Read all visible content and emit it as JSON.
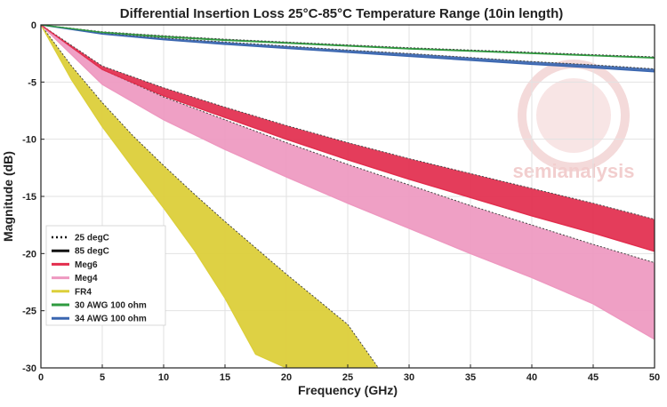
{
  "chart_data": {
    "type": "area",
    "title": "Differential Insertion Loss 25°C-85°C Temperature Range (10in length)",
    "xlabel": "Frequency (GHz)",
    "ylabel": "Magnitude (dB)",
    "xlim": [
      0,
      50
    ],
    "ylim": [
      -30,
      0
    ],
    "xticks": [
      0,
      5,
      10,
      15,
      20,
      25,
      30,
      35,
      40,
      45,
      50
    ],
    "yticks": [
      0,
      -5,
      -10,
      -15,
      -20,
      -25,
      -30
    ],
    "grid": true,
    "legend_position": "bottom-left",
    "legend": [
      {
        "label": "25 degC",
        "color": "#111111",
        "style": "dotted"
      },
      {
        "label": "85 degC",
        "color": "#111111",
        "style": "solid"
      },
      {
        "label": "Meg6",
        "color": "#e22d4d",
        "style": "solid"
      },
      {
        "label": "Meg4",
        "color": "#ee98c0",
        "style": "solid"
      },
      {
        "label": "FR4",
        "color": "#dccf3a",
        "style": "solid"
      },
      {
        "label": "30 AWG 100 ohm",
        "color": "#2f9b3f",
        "style": "solid"
      },
      {
        "label": "34 AWG 100 ohm",
        "color": "#3a66b0",
        "style": "solid"
      }
    ],
    "series": [
      {
        "name": "30 AWG 100 ohm",
        "color": "#2f9b3f",
        "x": [
          0,
          5,
          10,
          15,
          20,
          25,
          30,
          35,
          40,
          45,
          50
        ],
        "y_25C": [
          0,
          -0.6,
          -0.95,
          -1.25,
          -1.5,
          -1.75,
          -2.0,
          -2.2,
          -2.4,
          -2.6,
          -2.8
        ],
        "y_85C": [
          0,
          -0.65,
          -1.05,
          -1.35,
          -1.6,
          -1.85,
          -2.1,
          -2.3,
          -2.5,
          -2.7,
          -2.9
        ]
      },
      {
        "name": "34 AWG 100 ohm",
        "color": "#3a66b0",
        "x": [
          0,
          5,
          10,
          15,
          20,
          25,
          30,
          35,
          40,
          45,
          50
        ],
        "y_25C": [
          0,
          -0.7,
          -1.15,
          -1.5,
          -1.85,
          -2.2,
          -2.5,
          -2.85,
          -3.2,
          -3.5,
          -3.85
        ],
        "y_85C": [
          0,
          -0.8,
          -1.3,
          -1.7,
          -2.05,
          -2.4,
          -2.75,
          -3.1,
          -3.45,
          -3.75,
          -4.1
        ]
      },
      {
        "name": "Meg6",
        "color": "#e22d4d",
        "x": [
          0,
          5,
          10,
          15,
          20,
          25,
          30,
          35,
          40,
          45,
          50
        ],
        "y_25C": [
          0,
          -3.6,
          -5.5,
          -7.2,
          -8.8,
          -10.3,
          -11.7,
          -13.0,
          -14.3,
          -15.6,
          -17.0
        ],
        "y_85C": [
          0,
          -3.9,
          -6.2,
          -8.1,
          -10.0,
          -11.8,
          -13.5,
          -15.1,
          -16.7,
          -18.2,
          -19.8
        ]
      },
      {
        "name": "Meg4",
        "color": "#ee98c0",
        "x": [
          0,
          5,
          10,
          15,
          20,
          25,
          30,
          35,
          40,
          45,
          50
        ],
        "y_25C": [
          0,
          -3.9,
          -6.3,
          -8.3,
          -10.3,
          -12.2,
          -14.0,
          -15.8,
          -17.5,
          -19.2,
          -20.8
        ],
        "y_85C": [
          0,
          -5.2,
          -8.3,
          -10.9,
          -13.3,
          -15.6,
          -17.8,
          -20.0,
          -22.1,
          -24.4,
          -27.5
        ]
      },
      {
        "name": "FR4",
        "color": "#dccf3a",
        "x": [
          0,
          2.5,
          5,
          7.5,
          10,
          12.5,
          15,
          17.5,
          20,
          22.5,
          25,
          27.5
        ],
        "y_25C": [
          0,
          -3.6,
          -6.8,
          -9.7,
          -12.3,
          -14.8,
          -17.2,
          -19.5,
          -21.8,
          -24.0,
          -26.2,
          -30.0
        ],
        "y_85C": [
          0,
          -4.8,
          -8.9,
          -12.5,
          -16.0,
          -19.7,
          -23.9,
          -28.8,
          -30.0,
          null,
          null,
          null
        ]
      }
    ]
  },
  "watermark": {
    "brand": "semianalysis",
    "icon": "semianalysis-logo-icon"
  }
}
